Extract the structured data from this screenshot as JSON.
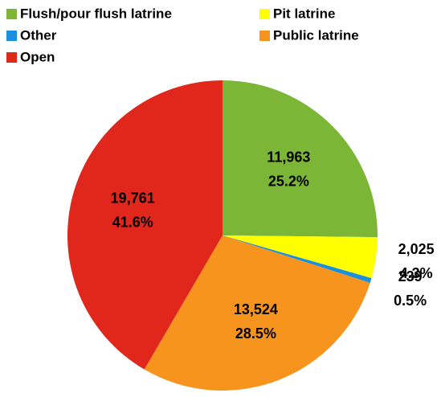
{
  "chart_data": {
    "type": "pie",
    "categories": [
      "Flush/pour flush latrine",
      "Pit latrine",
      "Other",
      "Public latrine",
      "Open"
    ],
    "values": [
      11963,
      2025,
      239,
      13524,
      19761
    ],
    "value_labels": [
      "11,963",
      "2,025",
      "239",
      "13,524",
      "19,761"
    ],
    "percentages": [
      25.2,
      4.3,
      0.5,
      28.5,
      41.6
    ],
    "percentage_labels": [
      "25.2%",
      "4.3%",
      "0.5%",
      "28.5%",
      "41.6%"
    ],
    "colors": [
      "#7cb637",
      "#ffff00",
      "#1a8fe0",
      "#f7941d",
      "#e1261c"
    ],
    "legend": "top"
  }
}
